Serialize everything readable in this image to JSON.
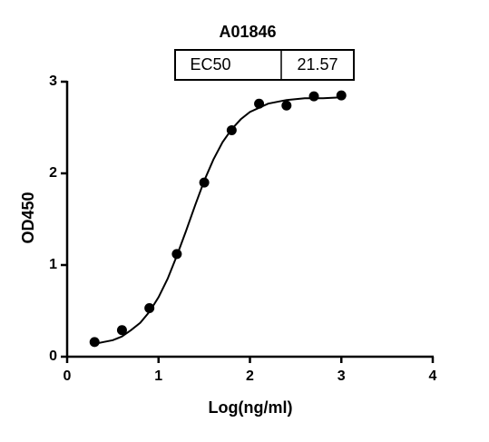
{
  "chart_data": {
    "type": "scatter",
    "title": "A01846",
    "annotation_table": [
      "EC50",
      "21.57"
    ],
    "x_label": "Log(ng/ml)",
    "y_label": "OD450",
    "x": [
      0.3,
      0.6,
      0.9,
      1.2,
      1.5,
      1.8,
      2.1,
      2.4,
      2.7,
      3.0
    ],
    "values": [
      0.16,
      0.29,
      0.53,
      1.12,
      1.9,
      2.47,
      2.76,
      2.74,
      2.84,
      2.85
    ],
    "color": "#000000",
    "curve": {
      "x": [
        0.3,
        0.4,
        0.5,
        0.6,
        0.7,
        0.8,
        0.9,
        1.0,
        1.1,
        1.2,
        1.3,
        1.4,
        1.5,
        1.6,
        1.7,
        1.8,
        1.9,
        2.0,
        2.2,
        2.4,
        2.6,
        2.8,
        3.0
      ],
      "values": [
        0.14,
        0.16,
        0.18,
        0.22,
        0.29,
        0.37,
        0.49,
        0.65,
        0.85,
        1.1,
        1.37,
        1.65,
        1.92,
        2.15,
        2.34,
        2.48,
        2.59,
        2.67,
        2.76,
        2.8,
        2.82,
        2.82,
        2.83
      ]
    },
    "xlim": [
      0,
      4
    ],
    "xticks": [
      0,
      1,
      2,
      3,
      4
    ],
    "ylim": [
      0,
      3
    ],
    "yticks": [
      0,
      1,
      2,
      3
    ]
  }
}
